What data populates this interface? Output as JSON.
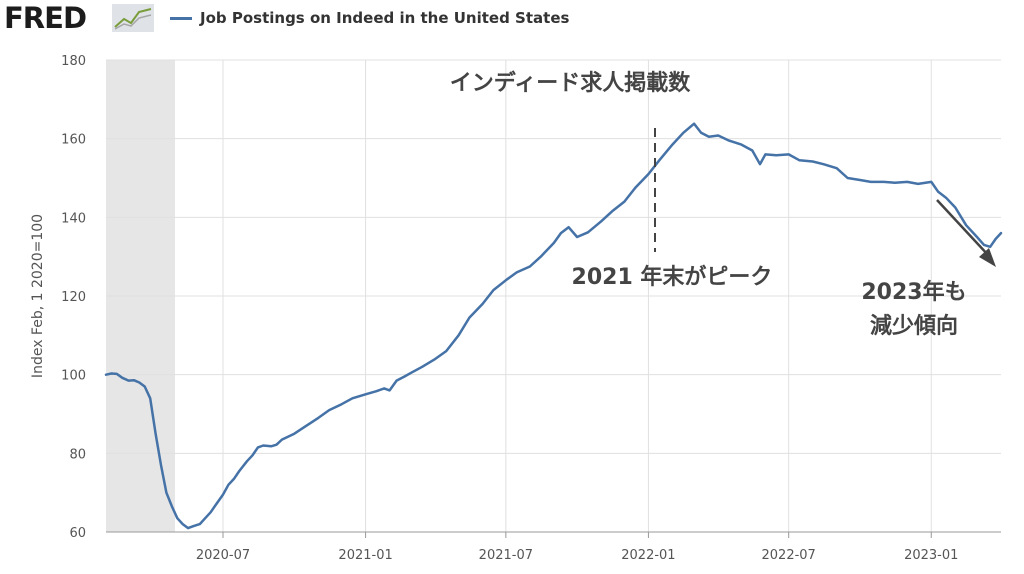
{
  "app": {
    "logo_text": "FRED",
    "legend_label": "Job Postings on Indeed in the United States",
    "colors": {
      "series": "#4572a7",
      "recession": "#e6e6e6",
      "grid": "#e0e0e0",
      "annotation": "#444444",
      "logo": "#1c1c1c"
    },
    "icons": [
      "fred-chart-icon",
      "series-legend-swatch"
    ]
  },
  "chart_data": {
    "type": "line",
    "title": "インディード求人掲載数",
    "ylabel": "Index Feb, 1 2020=100",
    "xlabel": "",
    "ylim": [
      60,
      180
    ],
    "yticks": [
      60,
      80,
      100,
      120,
      140,
      160,
      180
    ],
    "x_range": [
      "2020-02-01",
      "2023-04-01"
    ],
    "xticks": [
      "2020-07",
      "2021-01",
      "2021-07",
      "2022-01",
      "2022-07",
      "2023-01"
    ],
    "grid": true,
    "recession_shading": {
      "start": "2020-02-01",
      "end": "2020-04-30"
    },
    "annotations": [
      {
        "id": "peak",
        "text": "2021 年末がピーク",
        "at": "2022-01-01"
      },
      {
        "id": "decline",
        "lines": [
          "2023年も",
          "減少傾向"
        ]
      }
    ],
    "series": [
      {
        "name": "Job Postings on Indeed in the United States",
        "points": [
          [
            "2020-02-01",
            100.0
          ],
          [
            "2020-02-08",
            100.3
          ],
          [
            "2020-02-15",
            100.2
          ],
          [
            "2020-02-22",
            99.2
          ],
          [
            "2020-03-01",
            98.5
          ],
          [
            "2020-03-08",
            98.6
          ],
          [
            "2020-03-15",
            98.0
          ],
          [
            "2020-03-22",
            97.0
          ],
          [
            "2020-03-29",
            94.0
          ],
          [
            "2020-04-05",
            85.0
          ],
          [
            "2020-04-12",
            77.0
          ],
          [
            "2020-04-19",
            70.0
          ],
          [
            "2020-04-26",
            66.5
          ],
          [
            "2020-05-03",
            63.5
          ],
          [
            "2020-05-10",
            62.0
          ],
          [
            "2020-05-17",
            61.0
          ],
          [
            "2020-05-24",
            61.5
          ],
          [
            "2020-06-01",
            62.0
          ],
          [
            "2020-06-08",
            63.5
          ],
          [
            "2020-06-15",
            65.0
          ],
          [
            "2020-06-22",
            67.0
          ],
          [
            "2020-07-01",
            69.5
          ],
          [
            "2020-07-08",
            72.0
          ],
          [
            "2020-07-15",
            73.5
          ],
          [
            "2020-07-22",
            75.5
          ],
          [
            "2020-08-01",
            78.0
          ],
          [
            "2020-08-08",
            79.5
          ],
          [
            "2020-08-15",
            81.5
          ],
          [
            "2020-08-22",
            82.0
          ],
          [
            "2020-09-01",
            81.8
          ],
          [
            "2020-09-08",
            82.2
          ],
          [
            "2020-09-15",
            83.5
          ],
          [
            "2020-10-01",
            85.0
          ],
          [
            "2020-10-15",
            86.8
          ],
          [
            "2020-11-01",
            89.0
          ],
          [
            "2020-11-15",
            91.0
          ],
          [
            "2020-12-01",
            92.5
          ],
          [
            "2020-12-15",
            94.0
          ],
          [
            "2021-01-01",
            95.0
          ],
          [
            "2021-01-15",
            95.8
          ],
          [
            "2021-01-25",
            96.5
          ],
          [
            "2021-02-01",
            96.0
          ],
          [
            "2021-02-10",
            98.5
          ],
          [
            "2021-02-20",
            99.5
          ],
          [
            "2021-03-01",
            100.5
          ],
          [
            "2021-03-15",
            102.0
          ],
          [
            "2021-04-01",
            104.0
          ],
          [
            "2021-04-15",
            106.0
          ],
          [
            "2021-05-01",
            110.0
          ],
          [
            "2021-05-15",
            114.5
          ],
          [
            "2021-06-01",
            118.0
          ],
          [
            "2021-06-15",
            121.5
          ],
          [
            "2021-07-01",
            124.0
          ],
          [
            "2021-07-15",
            126.0
          ],
          [
            "2021-08-01",
            127.5
          ],
          [
            "2021-08-15",
            130.0
          ],
          [
            "2021-09-01",
            133.5
          ],
          [
            "2021-09-10",
            136.0
          ],
          [
            "2021-09-20",
            137.5
          ],
          [
            "2021-10-01",
            135.0
          ],
          [
            "2021-10-15",
            136.2
          ],
          [
            "2021-11-01",
            139.0
          ],
          [
            "2021-11-15",
            141.5
          ],
          [
            "2021-12-01",
            144.0
          ],
          [
            "2021-12-15",
            147.5
          ],
          [
            "2022-01-01",
            151.0
          ],
          [
            "2022-01-15",
            154.5
          ],
          [
            "2022-02-01",
            158.5
          ],
          [
            "2022-02-15",
            161.5
          ],
          [
            "2022-03-01",
            163.8
          ],
          [
            "2022-03-10",
            161.5
          ],
          [
            "2022-03-20",
            160.5
          ],
          [
            "2022-04-01",
            160.8
          ],
          [
            "2022-04-15",
            159.5
          ],
          [
            "2022-05-01",
            158.5
          ],
          [
            "2022-05-15",
            157.0
          ],
          [
            "2022-05-25",
            153.5
          ],
          [
            "2022-06-01",
            156.0
          ],
          [
            "2022-06-15",
            155.8
          ],
          [
            "2022-07-01",
            156.0
          ],
          [
            "2022-07-15",
            154.5
          ],
          [
            "2022-08-01",
            154.2
          ],
          [
            "2022-08-15",
            153.5
          ],
          [
            "2022-09-01",
            152.5
          ],
          [
            "2022-09-15",
            150.0
          ],
          [
            "2022-10-01",
            149.5
          ],
          [
            "2022-10-15",
            149.0
          ],
          [
            "2022-11-01",
            149.0
          ],
          [
            "2022-11-15",
            148.8
          ],
          [
            "2022-12-01",
            149.0
          ],
          [
            "2022-12-15",
            148.5
          ],
          [
            "2023-01-01",
            149.0
          ],
          [
            "2023-01-10",
            146.5
          ],
          [
            "2023-01-20",
            145.0
          ],
          [
            "2023-02-01",
            142.5
          ],
          [
            "2023-02-15",
            138.0
          ],
          [
            "2023-03-01",
            135.0
          ],
          [
            "2023-03-10",
            133.0
          ],
          [
            "2023-03-18",
            132.5
          ],
          [
            "2023-03-25",
            134.5
          ],
          [
            "2023-04-01",
            136.0
          ]
        ]
      }
    ]
  }
}
